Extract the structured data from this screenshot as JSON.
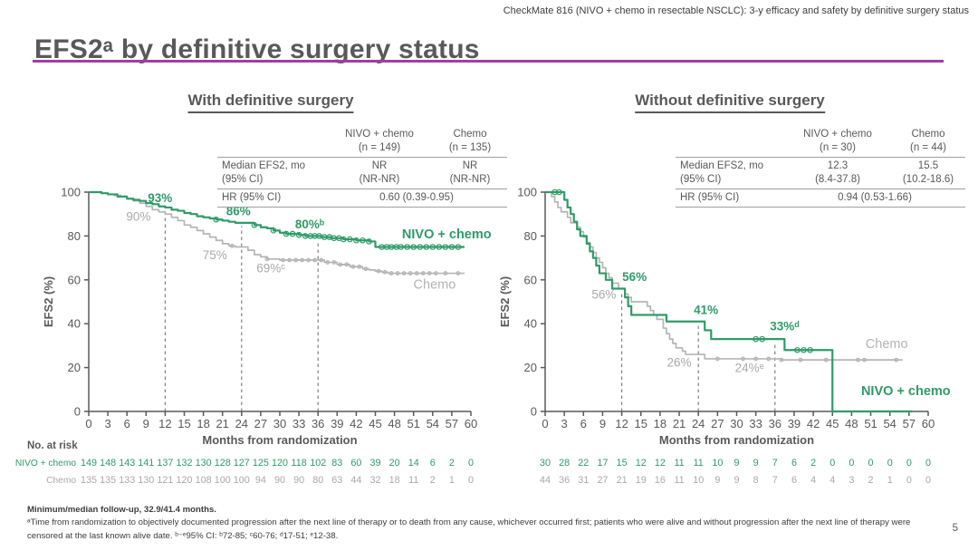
{
  "header": {
    "note": "CheckMate 816 (NIVO + chemo in resectable NSCLC): 3-y efficacy and safety by definitive surgery status"
  },
  "title": "EFS2ᵃ by definitive surgery status",
  "accent_color": "#a23da0",
  "colors": {
    "nivo_green": "#2f9b68",
    "chemo_gray": "#b5b5b5",
    "annotation_gray": "#a9a9a9",
    "axis_gray": "#595959"
  },
  "panels": [
    {
      "title": "With definitive surgery",
      "table": {
        "col_headers": [
          "NIVO + chemo\n(n = 149)",
          "Chemo\n(n = 135)"
        ],
        "rows": [
          {
            "label": "Median EFS2, mo\n(95% CI)",
            "values": [
              "NR\n(NR-NR)",
              "NR\n(NR-NR)"
            ]
          },
          {
            "label": "HR (95% CI)",
            "span_value": "0.60 (0.39-0.95)"
          }
        ]
      }
    },
    {
      "title": "Without definitive surgery",
      "table": {
        "col_headers": [
          "NIVO + chemo\n(n = 30)",
          "Chemo\n(n = 44)"
        ],
        "rows": [
          {
            "label": "Median EFS2, mo\n(95% CI)",
            "values": [
              "12.3\n(8.4-37.8)",
              "15.5\n(10.2-18.6)"
            ]
          },
          {
            "label": "HR (95% CI)",
            "span_value": "0.94 (0.53-1.66)"
          }
        ]
      }
    }
  ],
  "chart_data": [
    {
      "type": "line",
      "title": "With definitive surgery",
      "xlabel": "Months from randomization",
      "ylabel": "EFS2 (%)",
      "xlim": [
        0,
        60
      ],
      "ylim": [
        0,
        100
      ],
      "x_ticks": [
        0,
        3,
        6,
        9,
        12,
        15,
        18,
        21,
        24,
        27,
        30,
        33,
        36,
        39,
        42,
        45,
        48,
        51,
        54,
        57,
        60
      ],
      "y_ticks": [
        0,
        20,
        40,
        60,
        80,
        100
      ],
      "grid": false,
      "dashed_lines": [
        {
          "x": 12,
          "top": 91
        },
        {
          "x": 24,
          "top": 84.5
        },
        {
          "x": 36,
          "top": 78
        }
      ],
      "landmark_efs2": {
        "nivo_chemo": {
          "12mo": 93,
          "24mo": 86,
          "36mo": 80
        },
        "chemo": {
          "12mo": 90,
          "24mo": 75,
          "36mo": 69
        }
      },
      "series": [
        {
          "name": "Chemo",
          "color": "#b5b5b5",
          "width": 1.7,
          "censor_r": 1.8,
          "steps": [
            [
              0,
              100
            ],
            [
              2,
              99.5
            ],
            [
              3,
              99
            ],
            [
              4,
              98.5
            ],
            [
              5,
              98
            ],
            [
              6,
              97
            ],
            [
              7,
              96
            ],
            [
              8,
              95
            ],
            [
              9,
              93.5
            ],
            [
              10,
              92
            ],
            [
              11,
              91
            ],
            [
              12,
              90
            ],
            [
              13,
              88.5
            ],
            [
              14,
              87
            ],
            [
              15,
              85
            ],
            [
              16,
              84
            ],
            [
              17,
              82.5
            ],
            [
              18,
              81
            ],
            [
              19,
              79.5
            ],
            [
              20,
              78
            ],
            [
              21,
              76.5
            ],
            [
              22,
              75.5
            ],
            [
              23,
              75
            ],
            [
              25,
              73.5
            ],
            [
              26,
              71.5
            ],
            [
              27,
              70.5
            ],
            [
              28,
              69.5
            ],
            [
              30,
              69
            ],
            [
              37,
              68
            ],
            [
              39,
              67
            ],
            [
              41,
              66
            ],
            [
              43,
              65
            ],
            [
              44,
              64.5
            ],
            [
              45,
              64
            ],
            [
              46,
              63.5
            ],
            [
              47,
              63
            ],
            [
              59,
              63
            ]
          ],
          "censor_x": [
            22.5,
            28,
            30.5,
            31.5,
            32.5,
            33.5,
            34.5,
            35.5,
            36.5,
            37.5,
            38.5,
            39.5,
            40.5,
            41.5,
            42.5,
            43.5,
            45.5,
            46.5,
            47.5,
            48.5,
            49.5,
            50.5,
            51.5,
            52.5,
            53.5,
            54.5,
            56,
            58
          ]
        },
        {
          "name": "NIVO + chemo",
          "color": "#2f9b68",
          "width": 2.2,
          "censor_r": 2.7,
          "steps": [
            [
              0,
              100
            ],
            [
              2,
              99.5
            ],
            [
              3,
              99
            ],
            [
              4.5,
              98
            ],
            [
              6,
              97
            ],
            [
              7,
              96.5
            ],
            [
              8,
              96
            ],
            [
              9,
              95
            ],
            [
              10,
              94.5
            ],
            [
              11,
              93.5
            ],
            [
              12,
              93
            ],
            [
              13,
              92
            ],
            [
              14,
              91.5
            ],
            [
              15,
              90.5
            ],
            [
              16,
              90
            ],
            [
              17,
              89
            ],
            [
              18,
              88.5
            ],
            [
              19,
              88
            ],
            [
              20,
              87.5
            ],
            [
              21,
              87
            ],
            [
              22,
              86.5
            ],
            [
              23,
              86
            ],
            [
              26,
              85
            ],
            [
              27,
              84
            ],
            [
              28,
              83.5
            ],
            [
              29,
              82.5
            ],
            [
              30,
              81.5
            ],
            [
              31,
              81
            ],
            [
              33,
              80.5
            ],
            [
              34,
              80
            ],
            [
              36.5,
              79.5
            ],
            [
              38,
              79
            ],
            [
              40,
              78.5
            ],
            [
              42,
              78
            ],
            [
              44,
              77.5
            ],
            [
              45,
              75
            ],
            [
              59,
              75
            ]
          ],
          "censor_x": [
            20,
            26,
            29,
            31,
            32,
            33,
            34,
            34.8,
            35.5,
            36.2,
            37,
            37.8,
            38.5,
            39.3,
            40,
            41,
            42,
            43,
            44,
            46,
            46.8,
            47.5,
            48.3,
            49,
            50,
            51,
            52,
            53,
            54,
            55,
            56,
            57,
            58
          ]
        }
      ],
      "annotations": [
        {
          "text": "93%",
          "x": 11.2,
          "y": 95.5,
          "color": "#2f9b68",
          "bold": true
        },
        {
          "text": "90%",
          "x": 7.8,
          "y": 87,
          "color": "#a9a9a9"
        },
        {
          "text": "86%",
          "x": 23.5,
          "y": 89.5,
          "color": "#2f9b68",
          "bold": true
        },
        {
          "text": "80%ᵇ",
          "x": 34.7,
          "y": 83.5,
          "color": "#2f9b68",
          "bold": true
        },
        {
          "text": "75%",
          "x": 19.8,
          "y": 69.5,
          "color": "#a9a9a9"
        },
        {
          "text": "69%ᶜ",
          "x": 28.6,
          "y": 63.5,
          "color": "#a9a9a9"
        },
        {
          "text": "NIVO + chemo",
          "x": 56.2,
          "y": 79,
          "color": "#2f9b68",
          "bold": true,
          "size": 14.5
        },
        {
          "text": "Chemo",
          "x": 54.3,
          "y": 56,
          "color": "#b3b3b3",
          "size": 14.5
        }
      ],
      "risk_table": {
        "header": "No. at risk",
        "rows": [
          {
            "label": "NIVO + chemo",
            "color": "#2f9b68",
            "values": [
              149,
              148,
              143,
              141,
              137,
              132,
              130,
              128,
              127,
              125,
              120,
              118,
              102,
              83,
              60,
              39,
              20,
              14,
              6,
              2,
              0
            ]
          },
          {
            "label": "Chemo",
            "color": "#a9a9a9",
            "values": [
              135,
              135,
              133,
              130,
              121,
              120,
              108,
              100,
              100,
              94,
              90,
              90,
              80,
              63,
              44,
              32,
              18,
              11,
              2,
              1,
              0
            ]
          }
        ]
      }
    },
    {
      "type": "line",
      "title": "Without definitive surgery",
      "xlabel": "Months from randomization",
      "ylabel": "EFS2 (%)",
      "xlim": [
        0,
        60
      ],
      "ylim": [
        0,
        100
      ],
      "x_ticks": [
        0,
        3,
        6,
        9,
        12,
        15,
        18,
        21,
        24,
        27,
        30,
        33,
        36,
        39,
        42,
        45,
        48,
        51,
        54,
        57,
        60
      ],
      "y_ticks": [
        0,
        20,
        40,
        60,
        80,
        100
      ],
      "grid": false,
      "dashed_lines": [
        {
          "x": 12,
          "top": 54
        },
        {
          "x": 24,
          "top": 39
        },
        {
          "x": 36,
          "top": 31
        }
      ],
      "landmark_efs2": {
        "nivo_chemo": {
          "12mo": 56,
          "24mo": 41,
          "36mo": 33
        },
        "chemo": {
          "12mo": 56,
          "24mo": 26,
          "36mo": 24
        }
      },
      "series": [
        {
          "name": "Chemo",
          "color": "#b5b5b5",
          "width": 1.7,
          "censor_r": 1.8,
          "steps": [
            [
              0,
              100
            ],
            [
              1,
              98
            ],
            [
              1.5,
              95.5
            ],
            [
              2,
              93
            ],
            [
              2.5,
              91
            ],
            [
              3.5,
              88.5
            ],
            [
              4,
              86
            ],
            [
              5,
              84
            ],
            [
              5.5,
              82
            ],
            [
              6,
              79.5
            ],
            [
              6.5,
              77
            ],
            [
              7,
              75
            ],
            [
              7.5,
              72.5
            ],
            [
              8,
              70
            ],
            [
              8.5,
              68
            ],
            [
              9,
              65.5
            ],
            [
              9.5,
              63
            ],
            [
              10,
              61
            ],
            [
              10.5,
              58.5
            ],
            [
              11.5,
              56
            ],
            [
              12.5,
              53.5
            ],
            [
              13,
              52
            ],
            [
              13.5,
              50
            ],
            [
              16,
              48
            ],
            [
              16.5,
              46
            ],
            [
              17,
              44
            ],
            [
              17.5,
              42
            ],
            [
              18.5,
              38
            ],
            [
              19,
              35.5
            ],
            [
              19.5,
              33
            ],
            [
              20,
              31
            ],
            [
              20.5,
              29
            ],
            [
              21.5,
              27.5
            ],
            [
              22,
              26
            ],
            [
              25,
              24
            ],
            [
              37,
              23.5
            ],
            [
              56,
              23.5
            ]
          ],
          "censor_x": [
            27,
            31,
            33,
            35,
            37,
            40,
            44,
            49,
            50,
            55
          ]
        },
        {
          "name": "NIVO + chemo",
          "color": "#2f9b68",
          "width": 2.2,
          "censor_r": 2.7,
          "steps": [
            [
              0,
              100
            ],
            [
              2.5,
              100
            ],
            [
              3,
              96.5
            ],
            [
              3.5,
              93
            ],
            [
              4,
              90
            ],
            [
              4.5,
              86.5
            ],
            [
              5,
              83
            ],
            [
              5.5,
              80
            ],
            [
              6.5,
              76.5
            ],
            [
              7,
              73
            ],
            [
              7.5,
              70
            ],
            [
              8,
              66.5
            ],
            [
              8.5,
              63
            ],
            [
              9.5,
              60
            ],
            [
              10.5,
              56
            ],
            [
              12.5,
              52
            ],
            [
              13,
              48
            ],
            [
              13.5,
              44
            ],
            [
              19,
              41
            ],
            [
              25,
              37
            ],
            [
              26,
              33
            ],
            [
              37.5,
              28
            ],
            [
              45,
              0
            ],
            [
              57.5,
              0
            ]
          ],
          "censor_x": [
            1.5,
            2.2,
            33,
            34,
            39.5,
            40.5,
            41.5
          ]
        }
      ],
      "annotations": [
        {
          "text": "56%",
          "x": 14,
          "y": 59.5,
          "color": "#2f9b68",
          "bold": true
        },
        {
          "text": "56%",
          "x": 9.2,
          "y": 51.5,
          "color": "#a9a9a9"
        },
        {
          "text": "41%",
          "x": 25.2,
          "y": 44.5,
          "color": "#2f9b68",
          "bold": true
        },
        {
          "text": "33%ᵈ",
          "x": 37.5,
          "y": 37,
          "color": "#2f9b68",
          "bold": true
        },
        {
          "text": "26%",
          "x": 21,
          "y": 20.5,
          "color": "#a9a9a9"
        },
        {
          "text": "24%ᵉ",
          "x": 32,
          "y": 18,
          "color": "#a9a9a9"
        },
        {
          "text": "Chemo",
          "x": 53.5,
          "y": 29,
          "color": "#b3b3b3",
          "size": 14.5
        },
        {
          "text": "NIVO + chemo",
          "x": 56.5,
          "y": 7.5,
          "color": "#2f9b68",
          "bold": true,
          "size": 14.5
        }
      ],
      "risk_table": {
        "header": "",
        "rows": [
          {
            "label": "",
            "color": "#2f9b68",
            "values": [
              30,
              28,
              22,
              17,
              15,
              12,
              12,
              11,
              11,
              10,
              9,
              9,
              7,
              6,
              2,
              0,
              0,
              0,
              0,
              0,
              0
            ]
          },
          {
            "label": "",
            "color": "#a9a9a9",
            "values": [
              44,
              36,
              31,
              27,
              21,
              19,
              16,
              11,
              10,
              9,
              9,
              8,
              7,
              6,
              4,
              4,
              3,
              2,
              1,
              0,
              0
            ]
          }
        ]
      }
    }
  ],
  "footnotes": {
    "followup": "Minimum/median follow-up, 32.9/41.4 months.",
    "definitions": "ᵃTime from randomization to objectively documented progression after the next line of therapy or to death from any cause, whichever occurred first; patients who were alive and without progression after the next line of therapy were censored at the last known alive date. ᵇ⁻ᵉ95% CI: ᵇ72-85; ᶜ60-76; ᵈ17-51; ᵉ12-38."
  },
  "page_number": "5"
}
